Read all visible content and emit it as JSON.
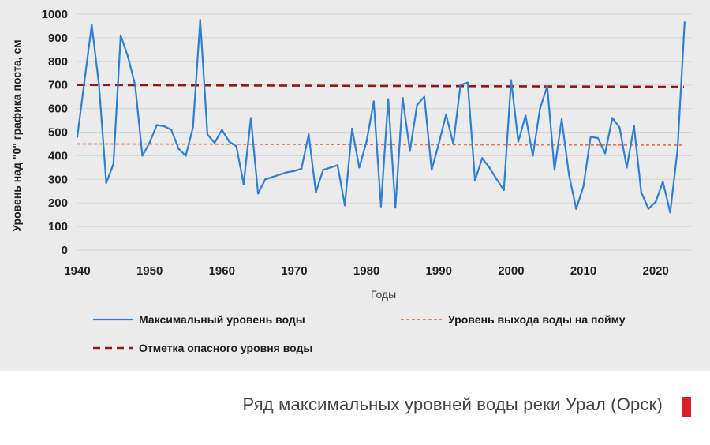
{
  "chart_data": {
    "type": "line",
    "xlabel": "Годы",
    "ylabel": "Уровень над \"0\" графика поста, см",
    "xlim": [
      1940,
      2025
    ],
    "ylim": [
      0,
      1000
    ],
    "x_ticks": [
      1940,
      1950,
      1960,
      1970,
      1980,
      1990,
      2000,
      2010,
      2020
    ],
    "y_ticks": [
      0,
      100,
      200,
      300,
      400,
      500,
      600,
      700,
      800,
      900,
      1000
    ],
    "series": [
      {
        "name": "Максимальный уровень воды",
        "style": "solid",
        "color": "#2f7fd3",
        "x": [
          1940,
          1941,
          1942,
          1943,
          1944,
          1945,
          1946,
          1947,
          1948,
          1949,
          1950,
          1951,
          1952,
          1953,
          1954,
          1955,
          1956,
          1957,
          1958,
          1959,
          1960,
          1961,
          1962,
          1963,
          1964,
          1965,
          1966,
          1967,
          1968,
          1969,
          1970,
          1971,
          1972,
          1973,
          1974,
          1975,
          1976,
          1977,
          1978,
          1979,
          1980,
          1981,
          1982,
          1983,
          1984,
          1985,
          1986,
          1987,
          1988,
          1989,
          1990,
          1991,
          1992,
          1993,
          1994,
          1995,
          1996,
          1997,
          1998,
          1999,
          2000,
          2001,
          2002,
          2003,
          2004,
          2005,
          2006,
          2007,
          2008,
          2009,
          2010,
          2011,
          2012,
          2013,
          2014,
          2015,
          2016,
          2017,
          2018,
          2019,
          2020,
          2021,
          2022,
          2023,
          2024
        ],
        "values": [
          480,
          720,
          955,
          700,
          285,
          365,
          910,
          820,
          700,
          400,
          455,
          530,
          525,
          510,
          430,
          400,
          520,
          975,
          490,
          455,
          510,
          460,
          440,
          280,
          560,
          240,
          300,
          310,
          320,
          330,
          335,
          345,
          490,
          245,
          340,
          350,
          360,
          190,
          515,
          350,
          460,
          630,
          185,
          640,
          180,
          645,
          420,
          615,
          650,
          340,
          450,
          575,
          450,
          700,
          710,
          295,
          390,
          350,
          300,
          255,
          720,
          460,
          570,
          400,
          600,
          695,
          340,
          555,
          320,
          175,
          270,
          480,
          475,
          410,
          560,
          520,
          350,
          525,
          245,
          175,
          205,
          290,
          160,
          420,
          965
        ]
      },
      {
        "name": "Уровень выхода воды на пойму",
        "style": "dotted",
        "color": "#e0785a",
        "values": [
          450,
          445
        ]
      },
      {
        "name": "Отметка опасного уровня воды",
        "style": "dashed",
        "color": "#8b1a1a",
        "values": [
          700,
          692
        ]
      }
    ]
  },
  "caption": "Ряд максимальных уровней воды реки Урал (Орск)",
  "colors": {
    "accent": "#d6202a",
    "photo_bg": "#ebebeb"
  }
}
